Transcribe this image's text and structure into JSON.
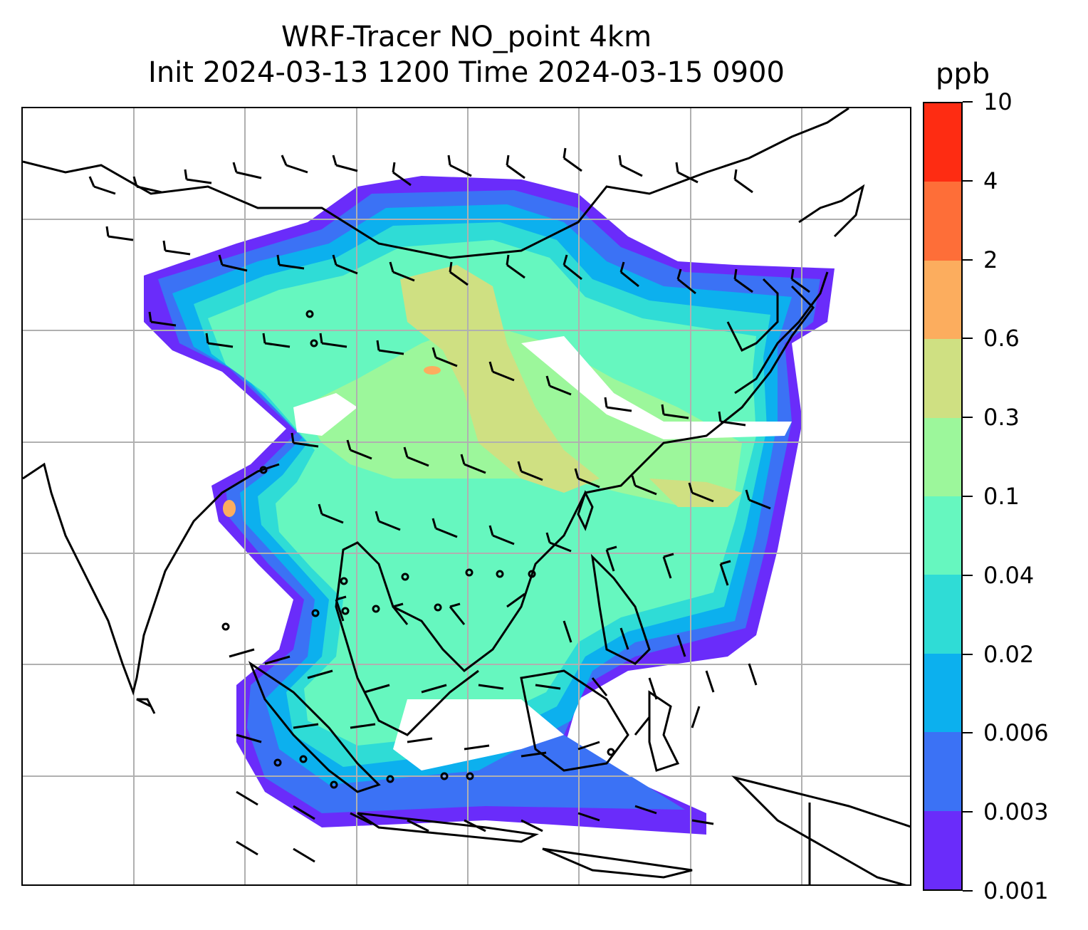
{
  "title": {
    "line1": "WRF-Tracer NO_point 4km",
    "line2": "Init 2024-03-13 1200 Time 2024-03-15 0900"
  },
  "colorbar": {
    "unit": "ppb",
    "levels": [
      "0.001",
      "0.003",
      "0.006",
      "0.02",
      "0.04",
      "0.1",
      "0.3",
      "0.6",
      "2",
      "4",
      "10"
    ],
    "colors": [
      "#6a2cfa",
      "#3b72f5",
      "#0cb0ee",
      "#2fdcd6",
      "#66f7bf",
      "#9cf79b",
      "#cfe082",
      "#fcad5e",
      "#fe6e38",
      "#fe2c12"
    ]
  },
  "map": {
    "gridlines": true,
    "gridline_color": "#b0b0b0",
    "coastline_color": "#000000",
    "wind_barbs": true
  }
}
